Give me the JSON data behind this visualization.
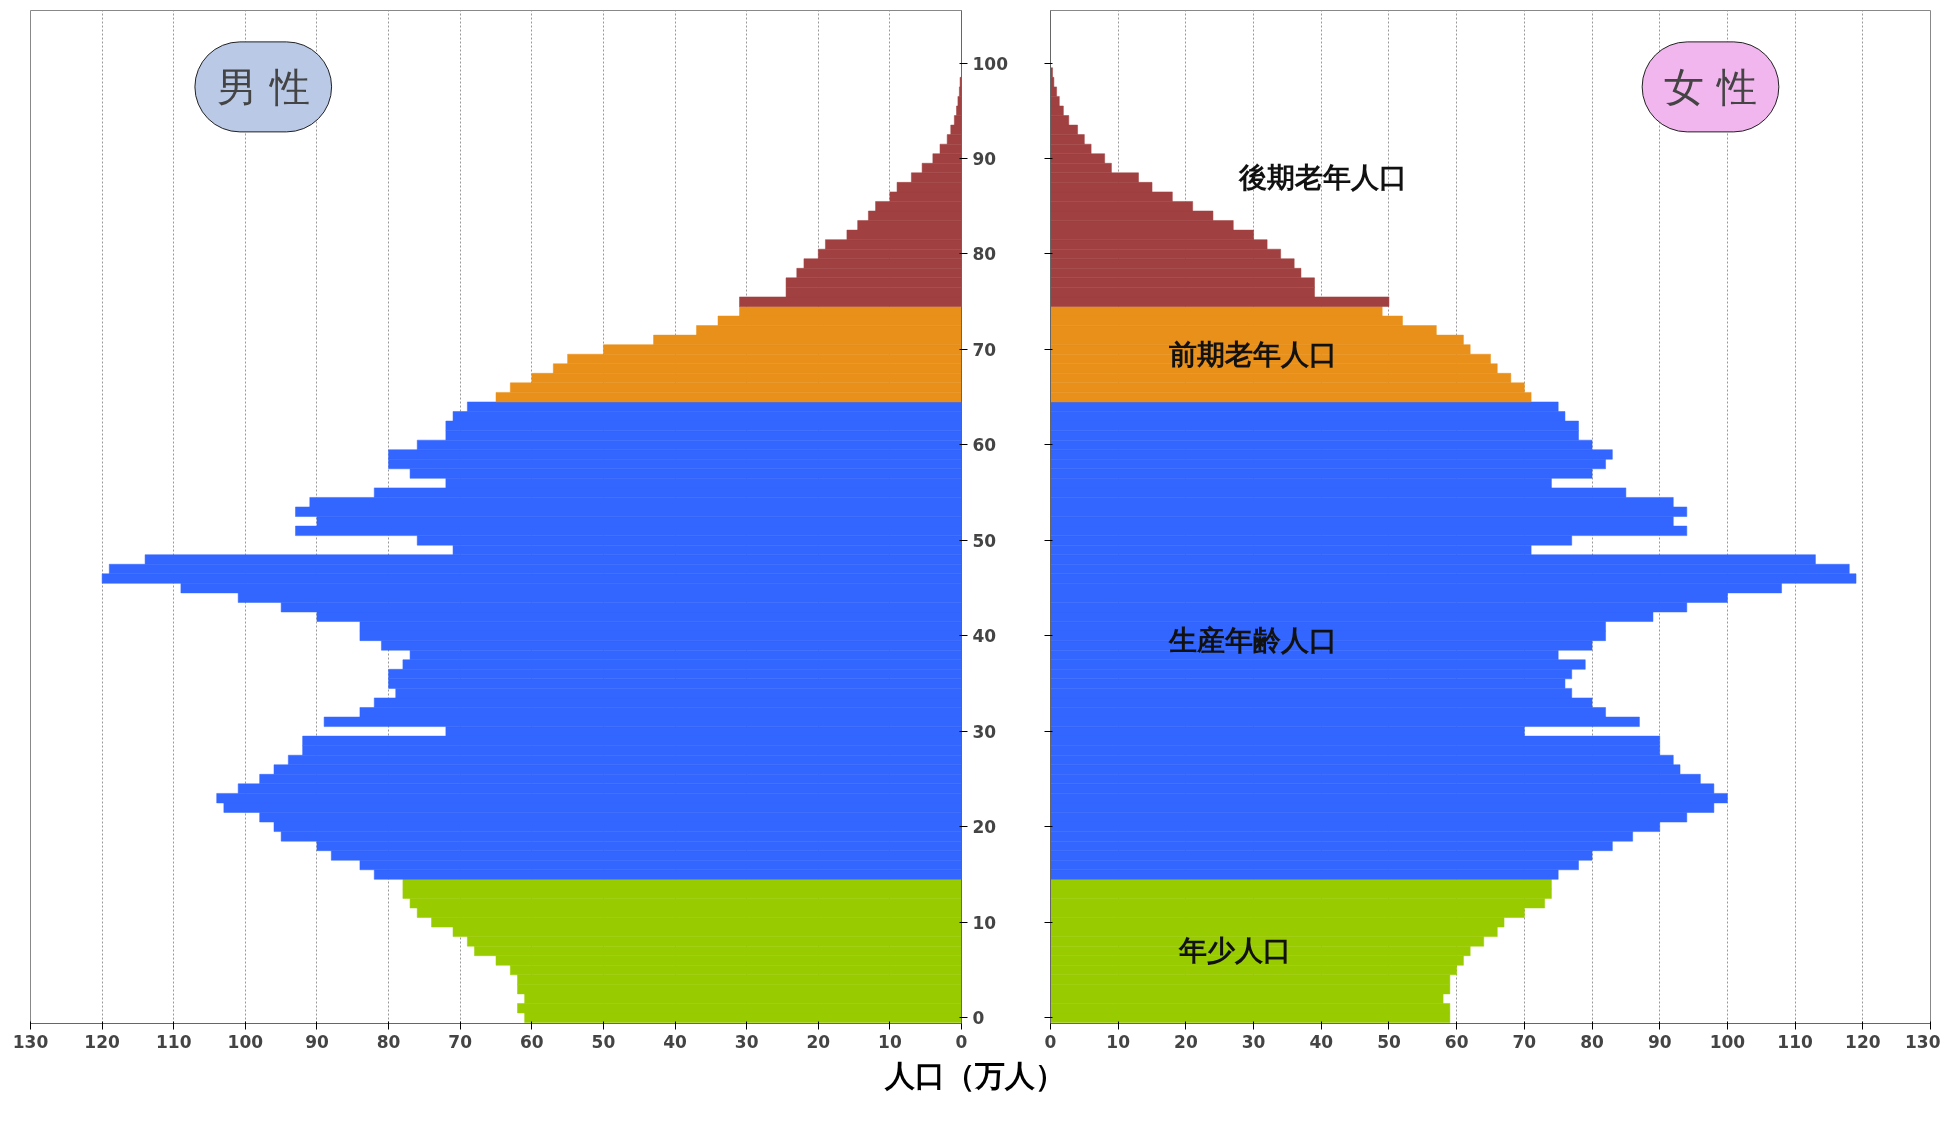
{
  "chart_data": [
    {
      "type": "bar",
      "orientation": "horizontal",
      "title": "男 性",
      "xlabel": "人口（万人）",
      "grid": "x",
      "xlim": [
        130,
        0
      ],
      "xticks": [
        0,
        10,
        20,
        30,
        40,
        50,
        60,
        70,
        80,
        90,
        100,
        110,
        120,
        130
      ],
      "ylim": [
        -0.6,
        105.5
      ],
      "yticks": [
        0,
        10,
        20,
        30,
        40,
        50,
        60,
        70,
        80,
        90,
        100
      ],
      "series": [
        {
          "color": "#99cc00",
          "x": [
            0,
            1,
            2,
            3,
            4,
            5,
            6,
            7,
            8,
            9,
            10,
            11,
            12,
            13,
            14
          ],
          "values": [
            61,
            62,
            61,
            62,
            62,
            63,
            65,
            68,
            69,
            71,
            74,
            76,
            77,
            78,
            78
          ]
        },
        {
          "color": "#3366ff",
          "x": [
            15,
            16,
            17,
            18,
            19,
            20,
            21,
            22,
            23,
            24,
            25,
            26,
            27,
            28,
            29,
            30,
            31,
            32,
            33,
            34,
            35,
            36,
            37,
            38,
            39,
            40,
            41,
            42,
            43,
            44,
            45,
            46,
            47,
            48,
            49,
            50,
            51,
            52,
            53,
            54,
            55,
            56,
            57,
            58,
            59,
            60,
            61,
            62,
            63,
            64
          ],
          "values": [
            82,
            84,
            88,
            90,
            95,
            96,
            98,
            103,
            104,
            101,
            98,
            96,
            94,
            92,
            92,
            72,
            89,
            84,
            82,
            79,
            80,
            80,
            78,
            77,
            81,
            84,
            84,
            90,
            95,
            101,
            109,
            120,
            119,
            114,
            71,
            76,
            93,
            90,
            93,
            91,
            82,
            72,
            77,
            80,
            80,
            76,
            72,
            72,
            71,
            69
          ]
        },
        {
          "color": "#e8901a",
          "x": [
            65,
            66,
            67,
            68,
            69,
            70,
            71,
            72,
            73,
            74
          ],
          "values": [
            65,
            63,
            60,
            57,
            55,
            50,
            43,
            37,
            34,
            31
          ]
        },
        {
          "color": "#a04040",
          "x": [
            75,
            76,
            77,
            78,
            79,
            80,
            81,
            82,
            83,
            84,
            85,
            86,
            87,
            88,
            89,
            90,
            91,
            92,
            93,
            94,
            95,
            96,
            97,
            98
          ],
          "values": [
            31,
            24.5,
            24.5,
            23,
            22,
            20,
            19,
            16,
            14.5,
            13,
            12,
            10,
            9,
            7,
            5.5,
            4,
            3,
            2,
            1.5,
            1,
            0.7,
            0.5,
            0.3,
            0.2
          ]
        }
      ]
    },
    {
      "type": "bar",
      "orientation": "horizontal",
      "title": "女 性",
      "grid": "x",
      "tick_labels": "x",
      "xlim": [
        0,
        130
      ],
      "xticks": [
        0,
        10,
        20,
        30,
        40,
        50,
        60,
        70,
        80,
        90,
        100,
        110,
        120,
        130
      ],
      "ylim": [
        -0.6,
        105.5
      ],
      "yticks": [
        0,
        10,
        20,
        30,
        40,
        50,
        60,
        70,
        80,
        90,
        100
      ],
      "annotations": [
        "後期老年人口",
        "前期老年人口",
        "生産年齢人口",
        "年少人口"
      ],
      "series": [
        {
          "color": "#99cc00",
          "x": [
            0,
            1,
            2,
            3,
            4,
            5,
            6,
            7,
            8,
            9,
            10,
            11,
            12,
            13,
            14
          ],
          "values": [
            59,
            59,
            58,
            59,
            59,
            60,
            61,
            62,
            64,
            66,
            67,
            70,
            73,
            74,
            74
          ]
        },
        {
          "color": "#3366ff",
          "x": [
            15,
            16,
            17,
            18,
            19,
            20,
            21,
            22,
            23,
            24,
            25,
            26,
            27,
            28,
            29,
            30,
            31,
            32,
            33,
            34,
            35,
            36,
            37,
            38,
            39,
            40,
            41,
            42,
            43,
            44,
            45,
            46,
            47,
            48,
            49,
            50,
            51,
            52,
            53,
            54,
            55,
            56,
            57,
            58,
            59,
            60,
            61,
            62,
            63,
            64
          ],
          "values": [
            75,
            78,
            80,
            83,
            86,
            90,
            94,
            98,
            100,
            98,
            96,
            93,
            92,
            90,
            90,
            70,
            87,
            82,
            80,
            77,
            76,
            77,
            79,
            75,
            80,
            82,
            82,
            89,
            94,
            100,
            108,
            119,
            118,
            113,
            71,
            77,
            94,
            92,
            94,
            92,
            85,
            74,
            80,
            82,
            83,
            80,
            78,
            78,
            76,
            75
          ]
        },
        {
          "color": "#e8901a",
          "x": [
            65,
            66,
            67,
            68,
            69,
            70,
            71,
            72,
            73,
            74
          ],
          "values": [
            71,
            70,
            68,
            66,
            65,
            62,
            61,
            57,
            52,
            49
          ]
        },
        {
          "color": "#a04040",
          "x": [
            75,
            76,
            77,
            78,
            79,
            80,
            81,
            82,
            83,
            84,
            85,
            86,
            87,
            88,
            89,
            90,
            91,
            92,
            93,
            94,
            95,
            96,
            97,
            98,
            99
          ],
          "values": [
            50,
            39,
            39,
            37,
            36,
            34,
            32,
            30,
            27,
            24,
            21,
            18,
            15,
            13,
            9,
            8,
            6,
            5,
            4,
            2.7,
            1.9,
            1.3,
            0.9,
            0.5,
            0.3
          ]
        }
      ]
    }
  ]
}
